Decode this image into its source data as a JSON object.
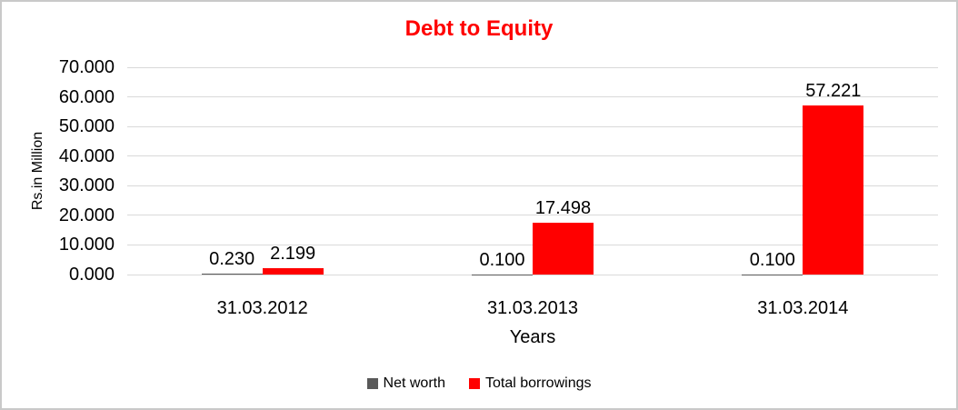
{
  "chart_data": {
    "type": "bar",
    "title": "Debt to Equity",
    "title_color": "#ff0000",
    "xlabel": "Years",
    "ylabel": "Rs.in Million",
    "categories": [
      "31.03.2012",
      "31.03.2013",
      "31.03.2014"
    ],
    "series": [
      {
        "name": "Net worth",
        "color": "#595959",
        "values": [
          0.23,
          0.1,
          0.1
        ],
        "labels": [
          "0.230",
          "0.100",
          "0.100"
        ]
      },
      {
        "name": "Total borrowings",
        "color": "#ff0000",
        "values": [
          2.199,
          17.498,
          57.221
        ],
        "labels": [
          "2.199",
          "17.498",
          "57.221"
        ]
      }
    ],
    "y_ticks": [
      "70.000",
      "60.000",
      "50.000",
      "40.000",
      "30.000",
      "20.000",
      "10.000",
      "0.000"
    ],
    "ylim": [
      0,
      70
    ],
    "grid": true,
    "gridline_color": "#d9d9d9",
    "legend_position": "bottom"
  }
}
